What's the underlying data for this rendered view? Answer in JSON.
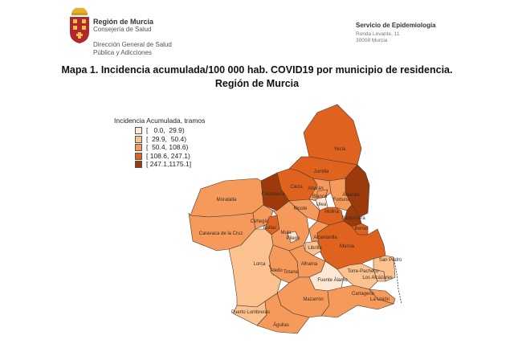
{
  "header": {
    "org_name": "Región de Murcia",
    "department": "Consejería de Salud",
    "directorate_line1": "Dirección General de Salud",
    "directorate_line2": "Pública y Adicciones",
    "service": "Servicio de Epidemiología",
    "address_line1": "Ronda Levante, 11",
    "address_line2": "30008 Murcia",
    "logo_icon": "coat-of-arms-region-de-murcia"
  },
  "title": {
    "line1": "Mapa 1. Incidencia acumulada/100 000 hab. COVID19 por municipio de residencia.",
    "line2": "Región de Murcia"
  },
  "legend": {
    "title": "Incidencia Acumulada, tramos",
    "items": [
      {
        "label": "[   0.0,  29.9)",
        "color": "#fde8d4"
      },
      {
        "label": "[  29.9,  50.4)",
        "color": "#fbc28f"
      },
      {
        "label": "[  50.4, 108.6)",
        "color": "#f59a5a"
      },
      {
        "label": "[ 108.6, 247.1)",
        "color": "#e0621f"
      },
      {
        "label": "[ 247.1,1175.1]",
        "color": "#9c3a0b"
      }
    ]
  },
  "municipalities": [
    {
      "name": "Yecla",
      "class": 4
    },
    {
      "name": "Jumilla",
      "class": 4
    },
    {
      "name": "Abanilla",
      "class": 5
    },
    {
      "name": "Fortuna",
      "class": 3
    },
    {
      "name": "Calasparra",
      "class": 5
    },
    {
      "name": "Cieza",
      "class": 4
    },
    {
      "name": "Abarán",
      "class": 3
    },
    {
      "name": "Blanca",
      "class": 3
    },
    {
      "name": "Ulea",
      "class": 1
    },
    {
      "name": "Moratalla",
      "class": 3
    },
    {
      "name": "Caravaca de la Cruz",
      "class": 3
    },
    {
      "name": "Cehegín",
      "class": 3
    },
    {
      "name": "Bullas",
      "class": 4
    },
    {
      "name": "Mula",
      "class": 3
    },
    {
      "name": "Pliego",
      "class": 1
    },
    {
      "name": "Ricote",
      "class": 3
    },
    {
      "name": "Molina",
      "class": 4
    },
    {
      "name": "Santomera",
      "class": 5
    },
    {
      "name": "Beniel",
      "class": 4
    },
    {
      "name": "Alcantarilla",
      "class": 3
    },
    {
      "name": "Murcia",
      "class": 4
    },
    {
      "name": "Librilla",
      "class": 2
    },
    {
      "name": "Lorca",
      "class": 2
    },
    {
      "name": "Aledo",
      "class": 4
    },
    {
      "name": "Totana",
      "class": 3
    },
    {
      "name": "Alhama",
      "class": 3
    },
    {
      "name": "Fuente Álamo",
      "class": 1
    },
    {
      "name": "Mazarrón",
      "class": 3
    },
    {
      "name": "Cartagena",
      "class": 3
    },
    {
      "name": "La Unión",
      "class": 3
    },
    {
      "name": "Torre-Pacheco",
      "class": 2
    },
    {
      "name": "Los Alcázares",
      "class": 2
    },
    {
      "name": "San Pedro",
      "class": 2
    },
    {
      "name": "Puerto Lumbreras",
      "class": 2
    },
    {
      "name": "Águilas",
      "class": 3
    }
  ]
}
